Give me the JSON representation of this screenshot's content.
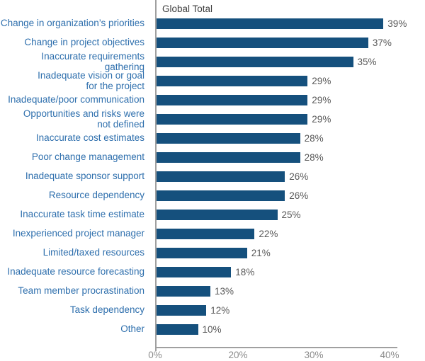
{
  "chart_data": {
    "type": "bar",
    "orientation": "horizontal",
    "title": "Global Total",
    "categories": [
      "Change in organization’s priorities",
      "Change in project objectives",
      "Inaccurate requirements gathering",
      "Inadequate vision or goal\nfor the project",
      "Inadequate/poor communication",
      "Opportunities and risks were\nnot defined",
      "Inaccurate cost estimates",
      "Poor change management",
      "Inadequate sponsor support",
      "Resource dependency",
      "Inaccurate task time estimate",
      "Inexperienced project manager",
      "Limited/taxed resources",
      "Inadequate resource forecasting",
      "Team member procrastination",
      "Task dependency",
      "Other"
    ],
    "values": [
      39,
      37,
      35,
      29,
      29,
      29,
      28,
      28,
      26,
      26,
      25,
      22,
      21,
      18,
      13,
      12,
      10
    ],
    "value_suffix": "%",
    "x_ticks": [
      {
        "label": "0%",
        "value": 0
      },
      {
        "label": "20%",
        "value": 20
      },
      {
        "label": "30%",
        "value": 30
      },
      {
        "label": "40%",
        "value": 40
      }
    ],
    "legend": "none",
    "grid": "off",
    "colors": {
      "bar": "#15507d",
      "category_label": "#2e6fad",
      "value_label": "#595959",
      "tick_label": "#8c8c8c",
      "axis": "#a0a0a0",
      "title": "#3f3f3f"
    }
  }
}
